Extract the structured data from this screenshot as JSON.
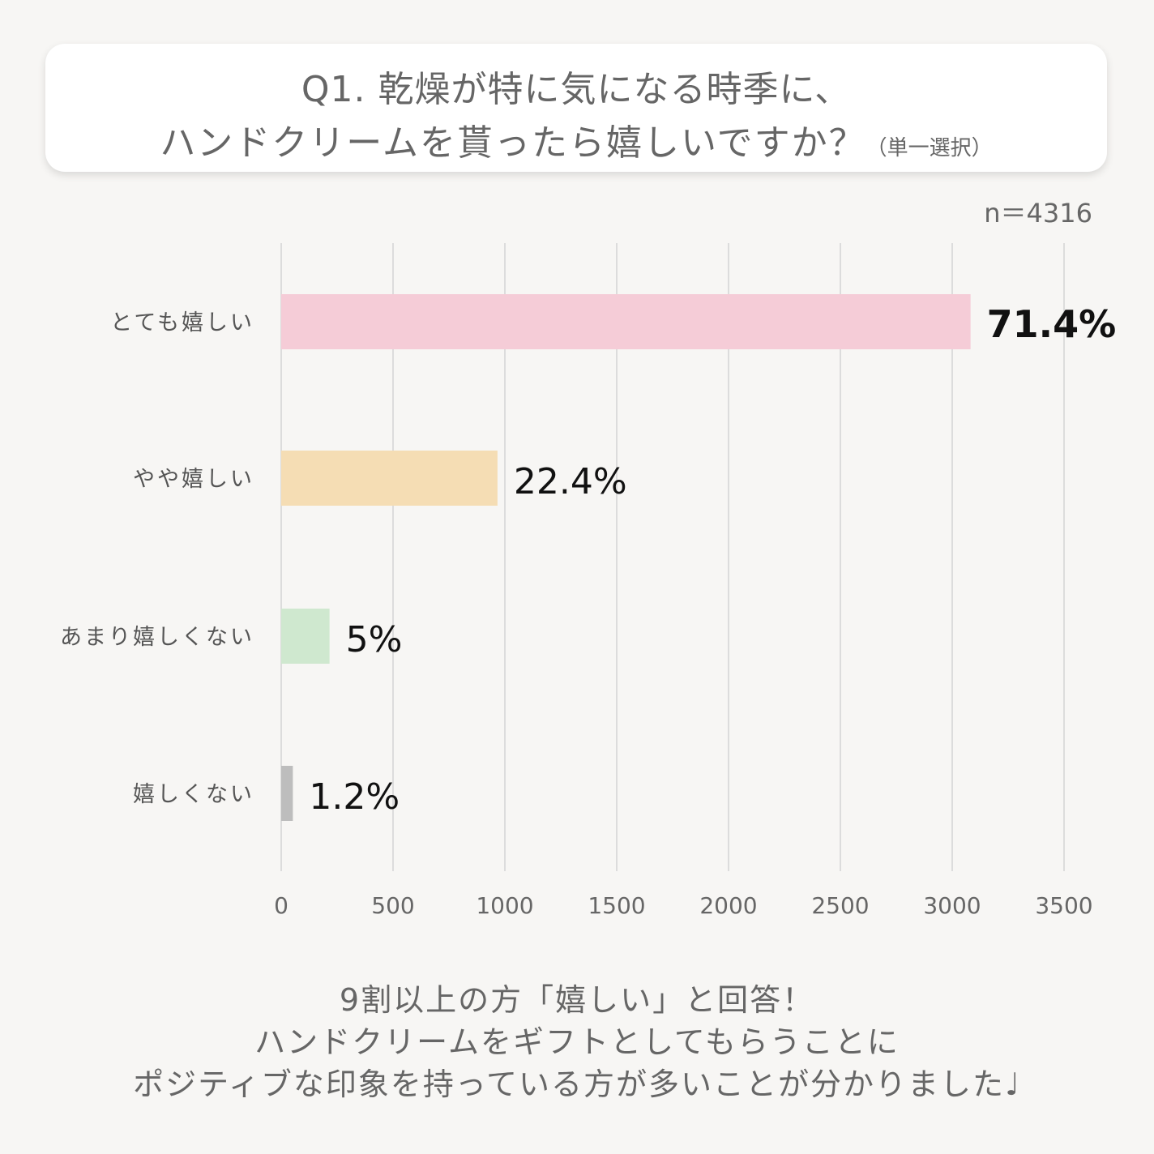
{
  "title": {
    "line1": "Q1. 乾燥が特に気になる時季に、",
    "line2": "ハンドクリームを貰ったら嬉しいですか？",
    "note": "（単一選択）"
  },
  "sample_size": "n＝4316",
  "chart_data": {
    "type": "bar",
    "orientation": "horizontal",
    "categories": [
      "とても嬉しい",
      "やや嬉しい",
      "あまり嬉しくない",
      "嬉しくない"
    ],
    "values": [
      3082,
      967,
      216,
      52
    ],
    "data_labels": [
      "71.4%",
      "22.4%",
      "5%",
      "1.2%"
    ],
    "colors": [
      "#f5ccd7",
      "#f5ddb4",
      "#cfe8cf",
      "#bdbdbd"
    ],
    "xlim": [
      0,
      3500
    ],
    "xticks": [
      "0",
      "500",
      "1000",
      "1500",
      "2000",
      "2500",
      "3000",
      "3500"
    ],
    "grid": true
  },
  "footer": {
    "line1": "9割以上の方「嬉しい」と回答！",
    "line2": "ハンドクリームをギフトとしてもらうことに",
    "line3": "ポジティブな印象を持っている方が多いことが分かりました♩"
  }
}
